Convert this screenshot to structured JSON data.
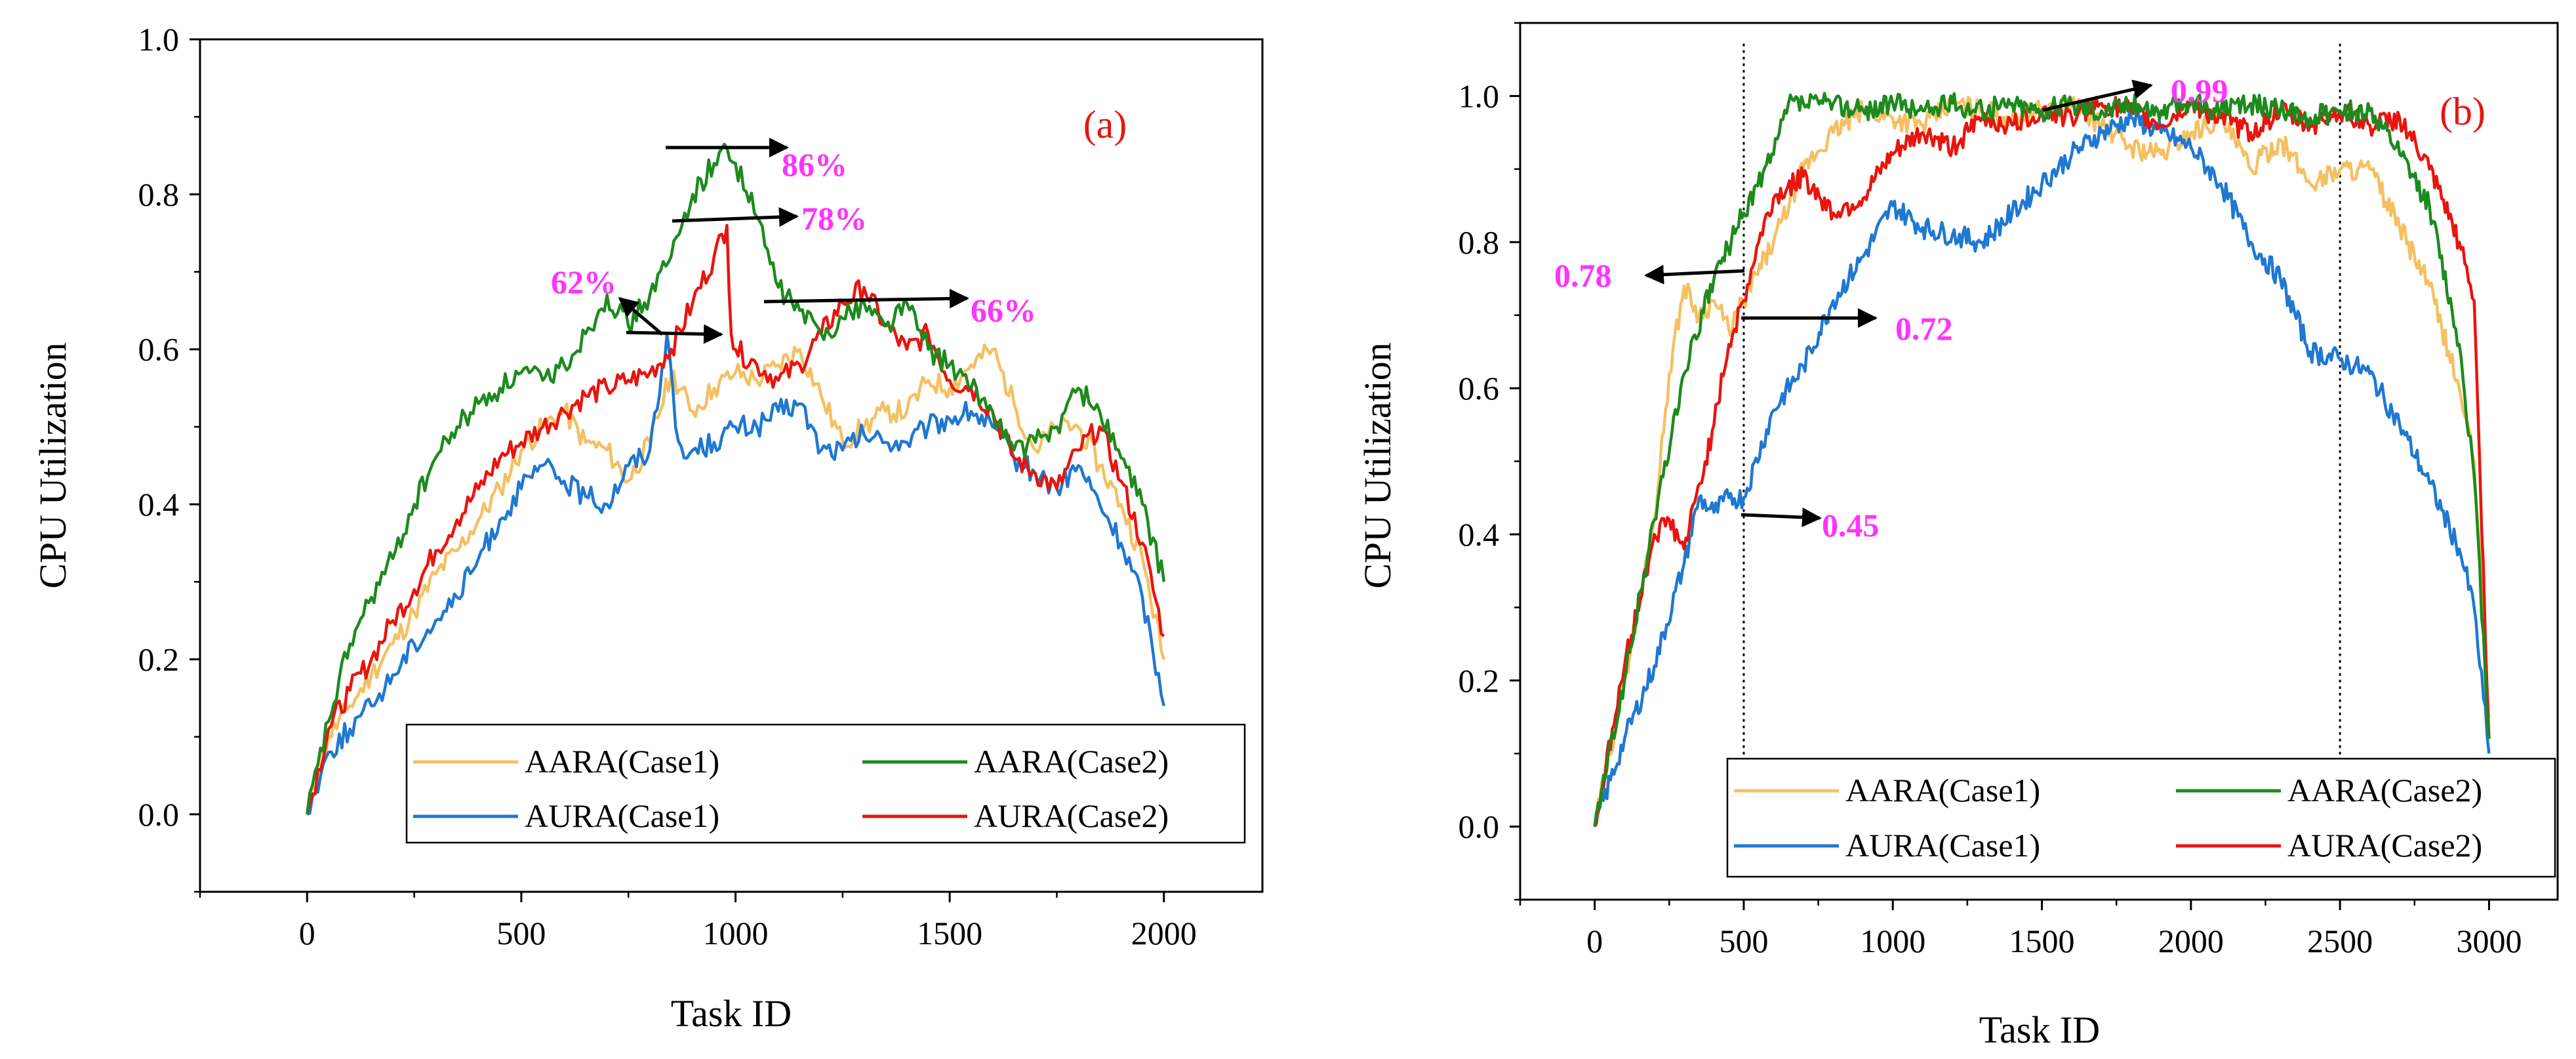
{
  "chart_data": [
    {
      "type": "line",
      "panel_label": "(a)",
      "xlabel": "Task ID",
      "ylabel": "CPU Utilization",
      "xlim": [
        -250,
        2230
      ],
      "ylim": [
        -0.1,
        1.0
      ],
      "xticks": [
        0,
        500,
        1000,
        1500,
        2000
      ],
      "xtick_labels": [
        "0",
        "500",
        "1000",
        "1500",
        "2000"
      ],
      "yticks": [
        0.0,
        0.2,
        0.4,
        0.6,
        0.8,
        1.0
      ],
      "ytick_labels": [
        "0.0",
        "0.2",
        "0.4",
        "0.6",
        "0.8",
        "1.0"
      ],
      "legend_position": "bottom-right",
      "series": [
        {
          "name": "AARA(Case1)",
          "color": "#f5c062",
          "x": [
            0,
            50,
            100,
            150,
            200,
            250,
            300,
            350,
            400,
            450,
            500,
            550,
            600,
            650,
            700,
            750,
            800,
            850,
            900,
            950,
            1000,
            1050,
            1100,
            1150,
            1200,
            1250,
            1300,
            1350,
            1400,
            1450,
            1500,
            1550,
            1600,
            1650,
            1700,
            1750,
            1800,
            1850,
            1900,
            1950,
            2000
          ],
          "y": [
            0.0,
            0.1,
            0.14,
            0.18,
            0.22,
            0.26,
            0.31,
            0.34,
            0.38,
            0.42,
            0.47,
            0.5,
            0.52,
            0.48,
            0.47,
            0.43,
            0.48,
            0.57,
            0.52,
            0.55,
            0.57,
            0.56,
            0.58,
            0.6,
            0.54,
            0.48,
            0.5,
            0.52,
            0.52,
            0.56,
            0.55,
            0.58,
            0.6,
            0.53,
            0.47,
            0.5,
            0.5,
            0.45,
            0.4,
            0.33,
            0.2
          ]
        },
        {
          "name": "AARA(Case2)",
          "color": "#1d8a1d",
          "x": [
            0,
            50,
            100,
            150,
            200,
            250,
            300,
            350,
            400,
            450,
            500,
            550,
            600,
            650,
            700,
            750,
            800,
            850,
            900,
            950,
            980,
            1000,
            1050,
            1100,
            1150,
            1200,
            1250,
            1300,
            1350,
            1400,
            1450,
            1500,
            1550,
            1600,
            1650,
            1700,
            1750,
            1800,
            1850,
            1900,
            1950,
            2000
          ],
          "y": [
            0.0,
            0.12,
            0.22,
            0.28,
            0.33,
            0.4,
            0.46,
            0.5,
            0.53,
            0.55,
            0.57,
            0.56,
            0.58,
            0.62,
            0.67,
            0.63,
            0.67,
            0.72,
            0.8,
            0.84,
            0.86,
            0.84,
            0.77,
            0.68,
            0.65,
            0.62,
            0.64,
            0.66,
            0.63,
            0.66,
            0.6,
            0.58,
            0.55,
            0.52,
            0.47,
            0.48,
            0.5,
            0.55,
            0.52,
            0.46,
            0.4,
            0.3
          ]
        },
        {
          "name": "AURA(Case1)",
          "color": "#1f78d1",
          "x": [
            0,
            50,
            100,
            150,
            200,
            250,
            300,
            350,
            400,
            450,
            500,
            550,
            600,
            650,
            700,
            750,
            800,
            840,
            860,
            880,
            900,
            950,
            1000,
            1050,
            1100,
            1150,
            1200,
            1250,
            1300,
            1350,
            1400,
            1450,
            1500,
            1550,
            1600,
            1650,
            1700,
            1750,
            1800,
            1850,
            1900,
            1950,
            2000
          ],
          "y": [
            0.0,
            0.08,
            0.11,
            0.14,
            0.18,
            0.22,
            0.25,
            0.28,
            0.33,
            0.38,
            0.42,
            0.45,
            0.43,
            0.41,
            0.4,
            0.45,
            0.47,
            0.62,
            0.5,
            0.46,
            0.47,
            0.48,
            0.5,
            0.5,
            0.52,
            0.53,
            0.47,
            0.47,
            0.49,
            0.48,
            0.48,
            0.5,
            0.51,
            0.52,
            0.5,
            0.46,
            0.44,
            0.42,
            0.45,
            0.4,
            0.35,
            0.28,
            0.14
          ]
        },
        {
          "name": "AURA(Case2)",
          "color": "#e8150e",
          "x": [
            0,
            50,
            100,
            150,
            200,
            250,
            300,
            350,
            400,
            450,
            500,
            550,
            600,
            650,
            700,
            750,
            800,
            850,
            900,
            950,
            980,
            990,
            1000,
            1050,
            1100,
            1150,
            1200,
            1250,
            1300,
            1350,
            1400,
            1450,
            1500,
            1550,
            1600,
            1650,
            1700,
            1750,
            1800,
            1850,
            1900,
            1950,
            2000
          ],
          "y": [
            0.0,
            0.11,
            0.16,
            0.2,
            0.25,
            0.29,
            0.34,
            0.38,
            0.42,
            0.46,
            0.48,
            0.5,
            0.52,
            0.54,
            0.55,
            0.56,
            0.57,
            0.6,
            0.66,
            0.72,
            0.76,
            0.62,
            0.6,
            0.58,
            0.56,
            0.58,
            0.62,
            0.66,
            0.68,
            0.63,
            0.6,
            0.62,
            0.56,
            0.55,
            0.52,
            0.46,
            0.44,
            0.42,
            0.47,
            0.5,
            0.43,
            0.35,
            0.23
          ]
        }
      ],
      "annotations": [
        {
          "text": "86%",
          "color": "#ff33ff"
        },
        {
          "text": "78%",
          "color": "#ff33ff"
        },
        {
          "text": "62%",
          "color": "#ff33ff"
        },
        {
          "text": "66%",
          "color": "#ff33ff"
        }
      ]
    },
    {
      "type": "line",
      "panel_label": "(b)",
      "xlabel": "Task ID",
      "ylabel": "CPU Utilization",
      "xlim": [
        -250,
        3230
      ],
      "ylim": [
        -0.1,
        1.1
      ],
      "xticks": [
        0,
        500,
        1000,
        1500,
        2000,
        2500,
        3000
      ],
      "xtick_labels": [
        "0",
        "500",
        "1000",
        "1500",
        "2000",
        "2500",
        "3000"
      ],
      "yticks": [
        0.0,
        0.2,
        0.4,
        0.6,
        0.8,
        1.0
      ],
      "ytick_labels": [
        "0.0",
        "0.2",
        "0.4",
        "0.6",
        "0.8",
        "1.0"
      ],
      "reference_lines_x": [
        500,
        2500
      ],
      "legend_position": "bottom",
      "series": [
        {
          "name": "AARA(Case1)",
          "color": "#f5c062",
          "x": [
            0,
            100,
            200,
            250,
            300,
            350,
            400,
            450,
            500,
            600,
            700,
            800,
            900,
            1000,
            1100,
            1200,
            1300,
            1400,
            1500,
            1600,
            1700,
            1800,
            1900,
            2000,
            2100,
            2200,
            2300,
            2400,
            2500,
            2600,
            2700,
            2800,
            2900,
            2950,
            3000
          ],
          "y": [
            0.0,
            0.2,
            0.42,
            0.62,
            0.74,
            0.7,
            0.72,
            0.68,
            0.72,
            0.8,
            0.9,
            0.95,
            0.98,
            0.97,
            0.96,
            0.99,
            0.98,
            0.97,
            0.98,
            0.99,
            0.96,
            0.93,
            0.92,
            0.95,
            0.97,
            0.9,
            0.94,
            0.88,
            0.9,
            0.9,
            0.82,
            0.74,
            0.6,
            0.5,
            0.15
          ]
        },
        {
          "name": "AARA(Case2)",
          "color": "#1d8a1d",
          "x": [
            0,
            100,
            200,
            300,
            400,
            500,
            600,
            650,
            700,
            800,
            900,
            1000,
            1100,
            1200,
            1300,
            1400,
            1500,
            1600,
            1700,
            1800,
            1900,
            2000,
            2100,
            2200,
            2300,
            2400,
            2500,
            2600,
            2700,
            2800,
            2900,
            2950,
            3000
          ],
          "y": [
            0.0,
            0.2,
            0.42,
            0.62,
            0.75,
            0.84,
            0.92,
            0.99,
            0.99,
            0.99,
            0.98,
            0.99,
            0.98,
            0.99,
            0.98,
            0.99,
            0.98,
            0.99,
            0.98,
            0.99,
            0.98,
            0.99,
            0.98,
            0.99,
            0.98,
            0.97,
            0.98,
            0.98,
            0.92,
            0.85,
            0.66,
            0.48,
            0.12
          ]
        },
        {
          "name": "AURA(Case1)",
          "color": "#1f78d1",
          "x": [
            0,
            100,
            200,
            300,
            350,
            400,
            450,
            500,
            600,
            700,
            800,
            900,
            1000,
            1100,
            1200,
            1300,
            1400,
            1500,
            1600,
            1700,
            1800,
            1900,
            2000,
            2100,
            2200,
            2300,
            2400,
            2500,
            2600,
            2700,
            2800,
            2900,
            2950,
            3000
          ],
          "y": [
            0.0,
            0.12,
            0.22,
            0.36,
            0.45,
            0.43,
            0.45,
            0.45,
            0.57,
            0.63,
            0.72,
            0.78,
            0.85,
            0.82,
            0.81,
            0.8,
            0.84,
            0.88,
            0.92,
            0.95,
            0.97,
            0.95,
            0.93,
            0.88,
            0.8,
            0.75,
            0.65,
            0.64,
            0.62,
            0.55,
            0.47,
            0.38,
            0.3,
            0.1
          ]
        },
        {
          "name": "AURA(Case2)",
          "color": "#e8150e",
          "x": [
            0,
            100,
            200,
            250,
            300,
            400,
            450,
            500,
            550,
            600,
            700,
            800,
            900,
            1000,
            1100,
            1200,
            1300,
            1400,
            1500,
            1600,
            1700,
            1800,
            1900,
            2000,
            2100,
            2200,
            2300,
            2400,
            2500,
            2600,
            2700,
            2800,
            2900,
            2950,
            3000
          ],
          "y": [
            0.0,
            0.22,
            0.4,
            0.42,
            0.38,
            0.55,
            0.66,
            0.72,
            0.8,
            0.86,
            0.89,
            0.84,
            0.86,
            0.92,
            0.95,
            0.93,
            0.97,
            0.96,
            0.98,
            0.97,
            0.99,
            0.98,
            0.96,
            0.99,
            0.97,
            0.95,
            0.98,
            0.96,
            0.98,
            0.96,
            0.97,
            0.9,
            0.8,
            0.72,
            0.12
          ]
        }
      ],
      "annotations": [
        {
          "text": "0.99",
          "color": "#ff33ff"
        },
        {
          "text": "0.78",
          "color": "#ff33ff"
        },
        {
          "text": "0.72",
          "color": "#ff33ff"
        },
        {
          "text": "0.45",
          "color": "#ff33ff"
        }
      ]
    }
  ]
}
